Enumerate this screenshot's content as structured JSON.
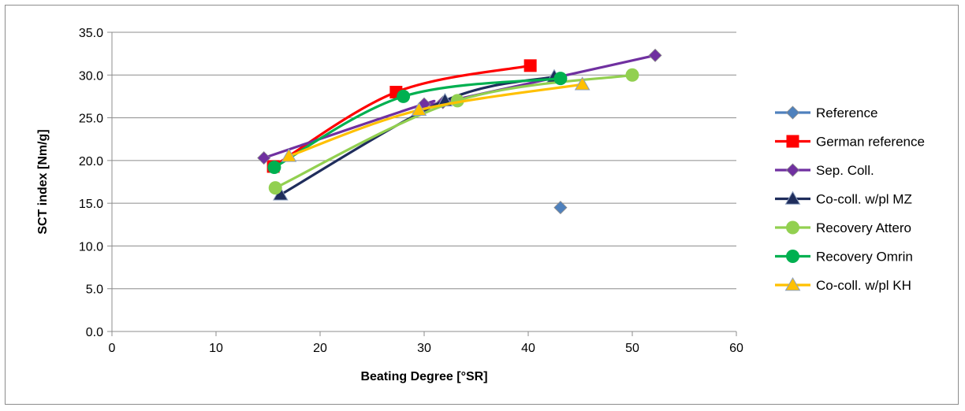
{
  "chart_data": {
    "type": "scatter",
    "title": "",
    "xlabel": "Beating Degree [°SR]",
    "ylabel": "SCT index [Nm/g]",
    "xlim": [
      0,
      60
    ],
    "ylim": [
      0,
      35
    ],
    "x_ticks": [
      0,
      10,
      20,
      30,
      40,
      50,
      60
    ],
    "y_ticks": [
      0,
      5,
      10,
      15,
      20,
      25,
      30,
      35
    ],
    "x_tick_labels": [
      "0",
      "10",
      "20",
      "30",
      "40",
      "50",
      "60"
    ],
    "y_tick_labels": [
      "0.0",
      "5.0",
      "10.0",
      "15.0",
      "20.0",
      "25.0",
      "30.0",
      "35.0"
    ],
    "grid": "horizontal",
    "legend_position": "right",
    "series": [
      {
        "name": "Reference",
        "color": "#4f81bd",
        "marker": "diamond",
        "line": false,
        "x": [
          43.1
        ],
        "y": [
          14.5
        ]
      },
      {
        "name": "German reference",
        "color": "#ff0000",
        "marker": "square",
        "line": true,
        "x": [
          15.5,
          27.3,
          40.2
        ],
        "y": [
          19.3,
          28.0,
          31.1
        ]
      },
      {
        "name": "Sep. Coll.",
        "color": "#7030a0",
        "marker": "diamond",
        "line": true,
        "x": [
          14.6,
          30.0,
          31.8,
          52.2
        ],
        "y": [
          20.3,
          26.6,
          26.8,
          32.3
        ]
      },
      {
        "name": "Co-coll. w/pl MZ",
        "color": "#1f2d5c",
        "marker": "triangle",
        "line": true,
        "x": [
          16.2,
          32.0,
          42.5
        ],
        "y": [
          16.0,
          27.0,
          29.8
        ]
      },
      {
        "name": "Recovery Attero",
        "color": "#92d050",
        "marker": "circle",
        "line": true,
        "x": [
          15.7,
          33.2,
          50.0
        ],
        "y": [
          16.8,
          27.0,
          30.0
        ]
      },
      {
        "name": "Recovery Omrin",
        "color": "#00b050",
        "marker": "circle",
        "line": true,
        "x": [
          15.6,
          28.0,
          43.1
        ],
        "y": [
          19.2,
          27.5,
          29.6
        ]
      },
      {
        "name": "Co-coll. w/pl KH",
        "color": "#ffc000",
        "marker": "triangle",
        "line": true,
        "x": [
          17.0,
          29.5,
          45.2
        ],
        "y": [
          20.5,
          25.9,
          28.9
        ]
      }
    ]
  }
}
